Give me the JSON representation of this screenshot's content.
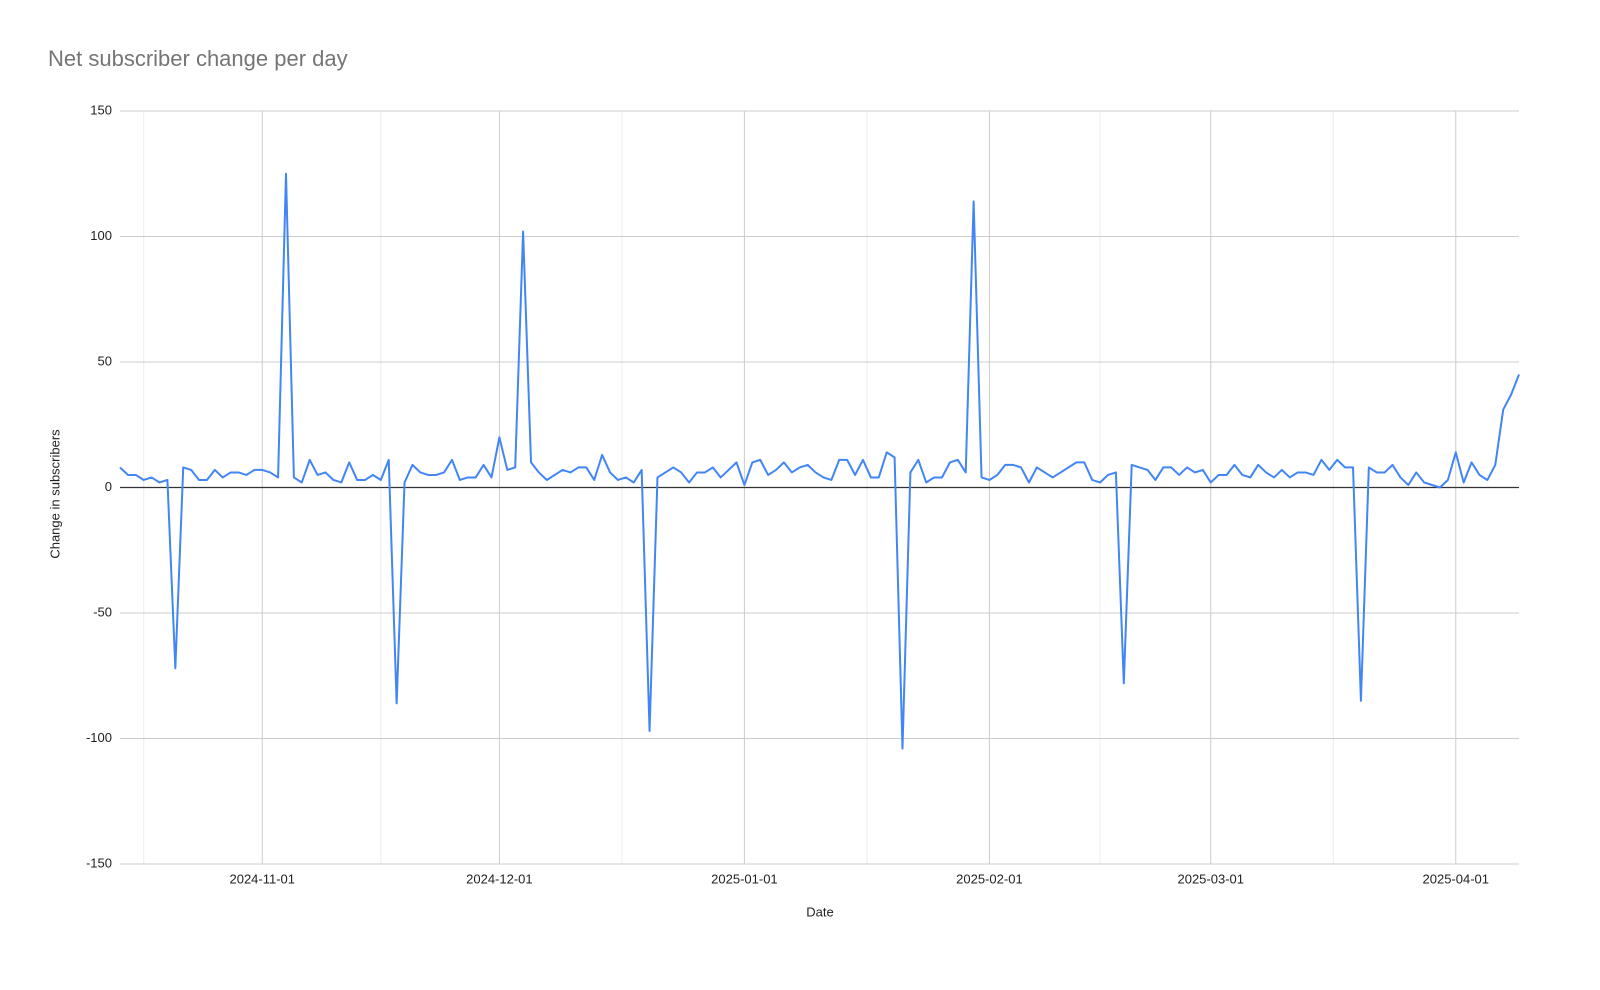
{
  "chart_data": {
    "type": "line",
    "title": "Net subscriber change per day",
    "x_label": "Date",
    "y_label": "Change in subscribers",
    "color": "#4285f4",
    "grid": true,
    "xlim": [
      "2024-10-14",
      "2025-04-09"
    ],
    "xticks": [
      "2024-11-01",
      "2024-12-01",
      "2025-01-01",
      "2025-02-01",
      "2025-03-01",
      "2025-04-01"
    ],
    "ylim": [
      -150,
      150
    ],
    "yticks": [
      -150,
      -100,
      -50,
      0,
      50,
      100,
      150
    ],
    "x": [
      "2024-10-14",
      "2024-10-15",
      "2024-10-16",
      "2024-10-17",
      "2024-10-18",
      "2024-10-19",
      "2024-10-20",
      "2024-10-21",
      "2024-10-22",
      "2024-10-23",
      "2024-10-24",
      "2024-10-25",
      "2024-10-26",
      "2024-10-27",
      "2024-10-28",
      "2024-10-29",
      "2024-10-30",
      "2024-10-31",
      "2024-11-01",
      "2024-11-02",
      "2024-11-03",
      "2024-11-04",
      "2024-11-05",
      "2024-11-06",
      "2024-11-07",
      "2024-11-08",
      "2024-11-09",
      "2024-11-10",
      "2024-11-11",
      "2024-11-12",
      "2024-11-13",
      "2024-11-14",
      "2024-11-15",
      "2024-11-16",
      "2024-11-17",
      "2024-11-18",
      "2024-11-19",
      "2024-11-20",
      "2024-11-21",
      "2024-11-22",
      "2024-11-23",
      "2024-11-24",
      "2024-11-25",
      "2024-11-26",
      "2024-11-27",
      "2024-11-28",
      "2024-11-29",
      "2024-11-30",
      "2024-12-01",
      "2024-12-02",
      "2024-12-03",
      "2024-12-04",
      "2024-12-05",
      "2024-12-06",
      "2024-12-07",
      "2024-12-08",
      "2024-12-09",
      "2024-12-10",
      "2024-12-11",
      "2024-12-12",
      "2024-12-13",
      "2024-12-14",
      "2024-12-15",
      "2024-12-16",
      "2024-12-17",
      "2024-12-18",
      "2024-12-19",
      "2024-12-20",
      "2024-12-21",
      "2024-12-22",
      "2024-12-23",
      "2024-12-24",
      "2024-12-25",
      "2024-12-26",
      "2024-12-27",
      "2024-12-28",
      "2024-12-29",
      "2024-12-30",
      "2024-12-31",
      "2025-01-01",
      "2025-01-02",
      "2025-01-03",
      "2025-01-04",
      "2025-01-05",
      "2025-01-06",
      "2025-01-07",
      "2025-01-08",
      "2025-01-09",
      "2025-01-10",
      "2025-01-11",
      "2025-01-12",
      "2025-01-13",
      "2025-01-14",
      "2025-01-15",
      "2025-01-16",
      "2025-01-17",
      "2025-01-18",
      "2025-01-19",
      "2025-01-20",
      "2025-01-21",
      "2025-01-22",
      "2025-01-23",
      "2025-01-24",
      "2025-01-25",
      "2025-01-26",
      "2025-01-27",
      "2025-01-28",
      "2025-01-29",
      "2025-01-30",
      "2025-01-31",
      "2025-02-01",
      "2025-02-02",
      "2025-02-03",
      "2025-02-04",
      "2025-02-05",
      "2025-02-06",
      "2025-02-07",
      "2025-02-08",
      "2025-02-09",
      "2025-02-10",
      "2025-02-11",
      "2025-02-12",
      "2025-02-13",
      "2025-02-14",
      "2025-02-15",
      "2025-02-16",
      "2025-02-17",
      "2025-02-18",
      "2025-02-19",
      "2025-02-20",
      "2025-02-21",
      "2025-02-22",
      "2025-02-23",
      "2025-02-24",
      "2025-02-25",
      "2025-02-26",
      "2025-02-27",
      "2025-02-28",
      "2025-03-01",
      "2025-03-02",
      "2025-03-03",
      "2025-03-04",
      "2025-03-05",
      "2025-03-06",
      "2025-03-07",
      "2025-03-08",
      "2025-03-09",
      "2025-03-10",
      "2025-03-11",
      "2025-03-12",
      "2025-03-13",
      "2025-03-14",
      "2025-03-15",
      "2025-03-16",
      "2025-03-17",
      "2025-03-18",
      "2025-03-19",
      "2025-03-20",
      "2025-03-21",
      "2025-03-22",
      "2025-03-23",
      "2025-03-24",
      "2025-03-25",
      "2025-03-26",
      "2025-03-27",
      "2025-03-28",
      "2025-03-29",
      "2025-03-30",
      "2025-03-31",
      "2025-04-01",
      "2025-04-02",
      "2025-04-03",
      "2025-04-04",
      "2025-04-05",
      "2025-04-06",
      "2025-04-07",
      "2025-04-08",
      "2025-04-09"
    ],
    "values": [
      8,
      5,
      5,
      3,
      4,
      2,
      3,
      -72,
      8,
      7,
      3,
      3,
      7,
      4,
      6,
      6,
      5,
      7,
      7,
      6,
      4,
      125,
      4,
      2,
      11,
      5,
      6,
      3,
      2,
      10,
      3,
      3,
      5,
      3,
      11,
      -86,
      2,
      9,
      6,
      5,
      5,
      6,
      11,
      3,
      4,
      4,
      9,
      4,
      20,
      7,
      8,
      102,
      10,
      6,
      3,
      5,
      7,
      6,
      8,
      8,
      3,
      13,
      6,
      3,
      4,
      2,
      7,
      -97,
      4,
      6,
      8,
      6,
      2,
      6,
      6,
      8,
      4,
      7,
      10,
      1,
      10,
      11,
      5,
      7,
      10,
      6,
      8,
      9,
      6,
      4,
      3,
      11,
      11,
      5,
      11,
      4,
      4,
      14,
      12,
      -104,
      6,
      11,
      2,
      4,
      4,
      10,
      11,
      6,
      114,
      4,
      3,
      5,
      9,
      9,
      8,
      2,
      8,
      6,
      4,
      6,
      8,
      10,
      10,
      3,
      2,
      5,
      6,
      -78,
      9,
      8,
      7,
      3,
      8,
      8,
      5,
      8,
      6,
      7,
      2,
      5,
      5,
      9,
      5,
      4,
      9,
      6,
      4,
      7,
      4,
      6,
      6,
      5,
      11,
      7,
      11,
      8,
      8,
      -85,
      8,
      6,
      6,
      9,
      4,
      1,
      6,
      2,
      1,
      0,
      3,
      14,
      2,
      10,
      5,
      3,
      9,
      31,
      37,
      45
    ]
  }
}
